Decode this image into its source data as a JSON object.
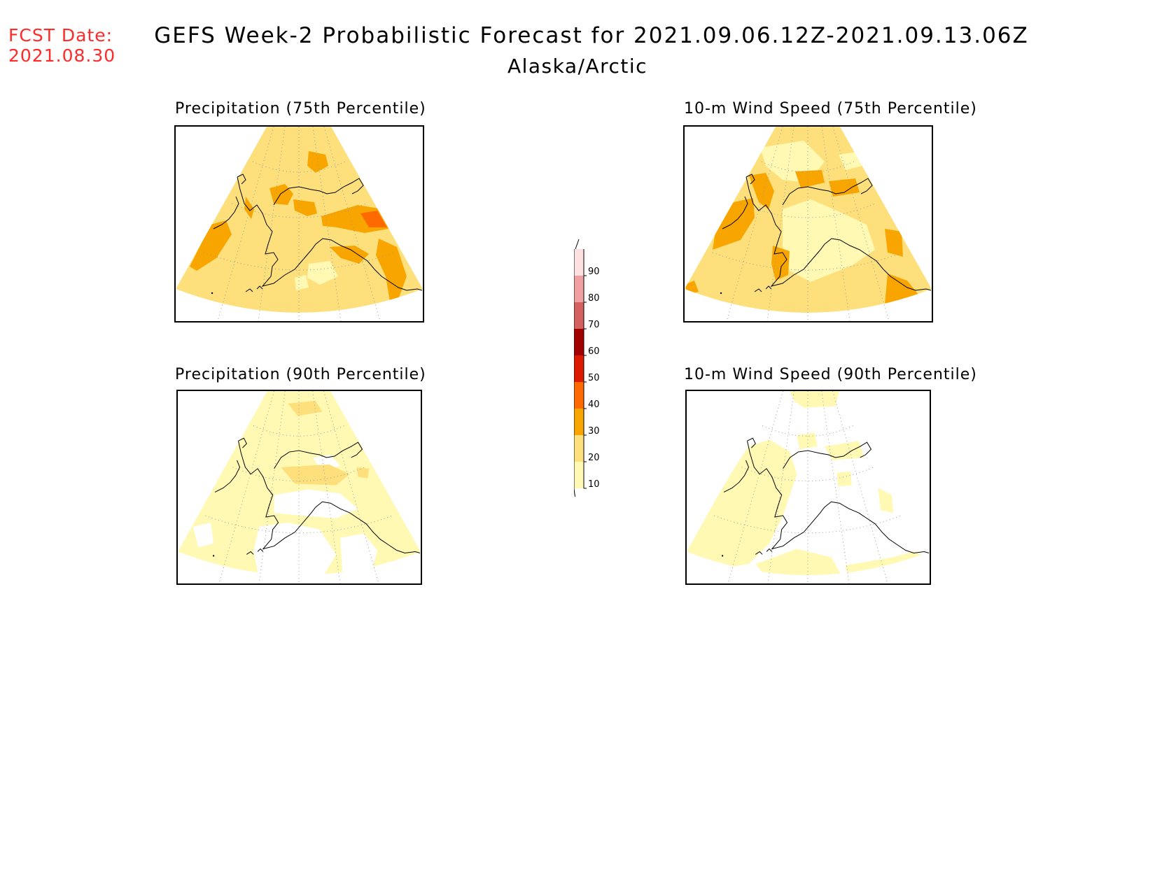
{
  "forecast_date": {
    "label": "FCST Date:",
    "value": "2021.08.30"
  },
  "title": "GEFS Week-2 Probabilistic Forecast for 2021.09.06.12Z-2021.09.13.06Z",
  "region": "Alaska/Arctic",
  "panels": [
    {
      "title": "Precipitation (75th Percentile)",
      "level": "high"
    },
    {
      "title": "10-m Wind Speed (75th Percentile)",
      "level": "high-mixed"
    },
    {
      "title": "Precipitation (90th Percentile)",
      "level": "low"
    },
    {
      "title": "10-m Wind Speed (90th Percentile)",
      "level": "low-sparse"
    }
  ],
  "colorbar": {
    "levels": [
      "10",
      "20",
      "30",
      "40",
      "50",
      "60",
      "70",
      "80",
      "90"
    ],
    "colors": [
      "#fff9b4",
      "#fde07c",
      "#f9a500",
      "#ff6a00",
      "#dc1a00",
      "#a30000",
      "#d46060",
      "#f0a0a0",
      "#fde0e0"
    ]
  },
  "colors": {
    "c10": "#fff9b4",
    "c20": "#fde07c",
    "c30": "#f9a500",
    "c40": "#ff6a00",
    "fcst": "#ff2a2a"
  }
}
